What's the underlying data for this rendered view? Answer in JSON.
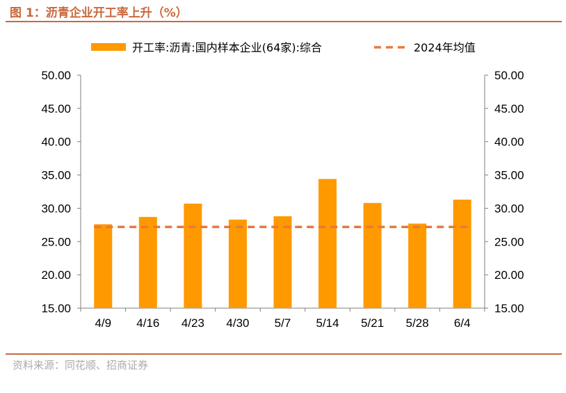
{
  "figure": {
    "title": "图 1：沥青企业开工率上升（%）",
    "source": "资料来源：同花顺、招商证券"
  },
  "colors": {
    "bar": "#ff9900",
    "avg_line": "#e8783c",
    "rule": "#c8693c",
    "axis": "#7f7f7f"
  },
  "chart_data": {
    "type": "bar",
    "categories": [
      "4/9",
      "4/16",
      "4/23",
      "4/30",
      "5/7",
      "5/14",
      "5/21",
      "5/28",
      "6/4"
    ],
    "series": [
      {
        "name": "开工率:沥青:国内样本企业(64家):综合",
        "type": "bar",
        "values": [
          27.6,
          28.7,
          30.7,
          28.3,
          28.8,
          34.4,
          30.8,
          27.7,
          31.3
        ]
      },
      {
        "name": "2024年均值",
        "type": "line",
        "style": "dashed",
        "values": [
          27.2,
          27.2,
          27.2,
          27.2,
          27.2,
          27.2,
          27.2,
          27.2,
          27.2
        ]
      }
    ],
    "y_ticks": [
      "15.00",
      "20.00",
      "25.00",
      "30.00",
      "35.00",
      "40.00",
      "45.00",
      "50.00"
    ],
    "ylim": [
      15,
      50
    ],
    "secondary_ylim": [
      15,
      50
    ],
    "legend_position": "top",
    "grid": false
  }
}
